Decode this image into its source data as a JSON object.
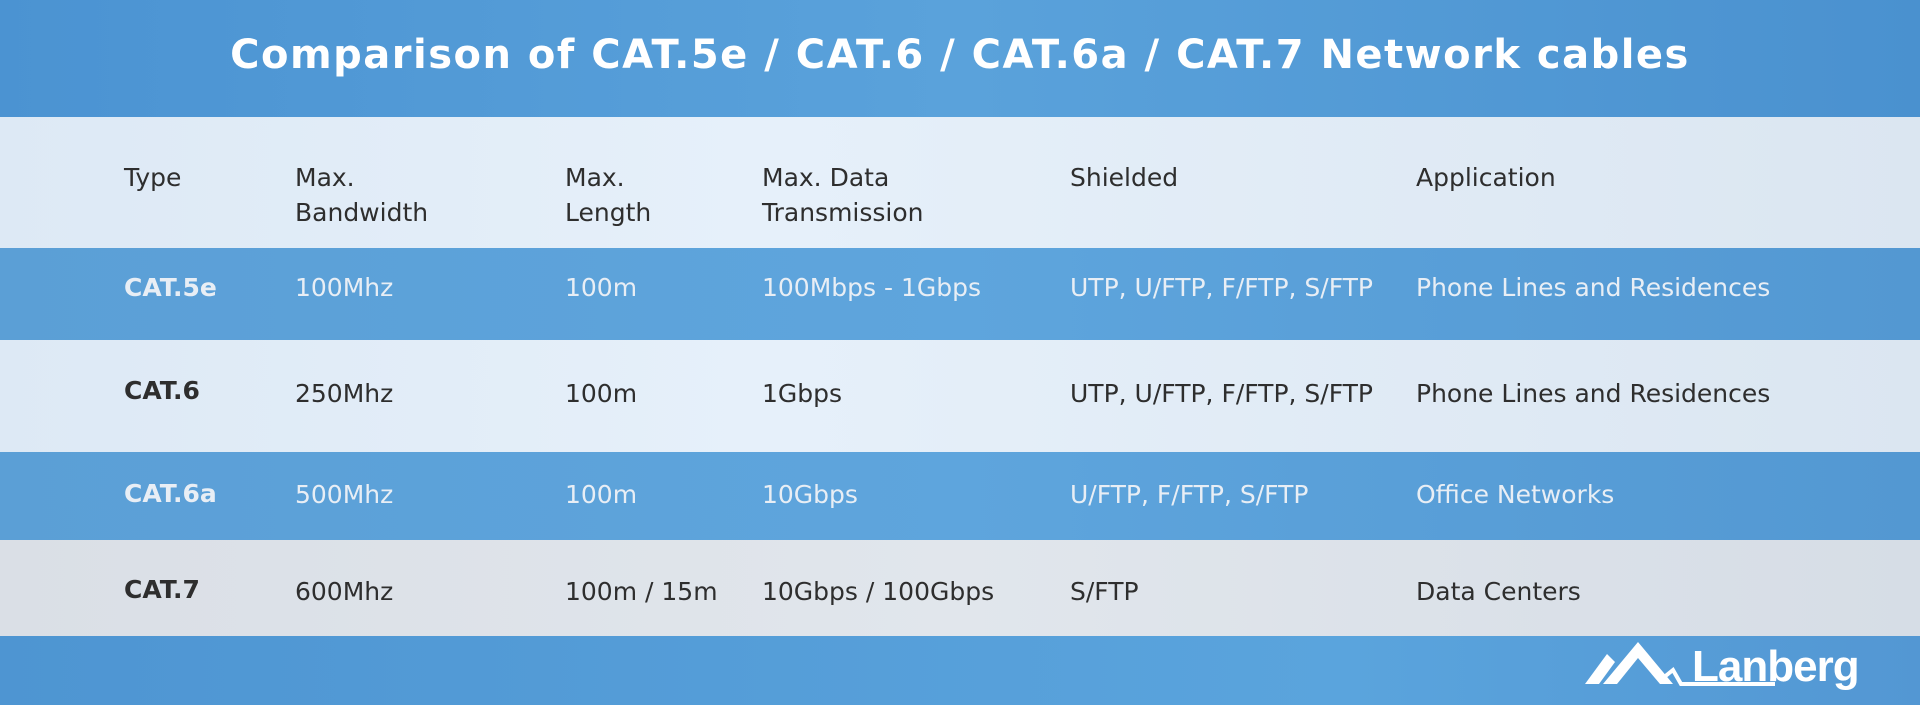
{
  "title": "Comparison of CAT.5e / CAT.6 / CAT.6a / CAT.7 Network cables",
  "table": {
    "headers": [
      {
        "line1": "Type",
        "line2": ""
      },
      {
        "line1": "Max.",
        "line2": "Bandwidth"
      },
      {
        "line1": "Max.",
        "line2": "Length"
      },
      {
        "line1": "Max. Data",
        "line2": "Transmission"
      },
      {
        "line1": "Shielded",
        "line2": ""
      },
      {
        "line1": "Application",
        "line2": ""
      }
    ],
    "rows": [
      [
        "CAT.5e",
        "100Mhz",
        "100m",
        "100Mbps - 1Gbps",
        "UTP, U/FTP, F/FTP, S/FTP",
        "Phone Lines and Residences"
      ],
      [
        "CAT.6",
        "250Mhz",
        "100m",
        "1Gbps",
        "UTP, U/FTP, F/FTP, S/FTP",
        "Phone Lines and Residences"
      ],
      [
        "CAT.6a",
        "500Mhz",
        "100m",
        "10Gbps",
        "U/FTP, F/FTP, S/FTP",
        "Office Networks"
      ],
      [
        "CAT.7",
        "600Mhz",
        "100m / 15m",
        "10Gbps / 100Gbps",
        "S/FTP",
        "Data Centers"
      ]
    ]
  },
  "logo": {
    "text": "Lanberg",
    "icon": "mountain-logo-icon"
  },
  "colors": {
    "accent_blue": "#5aa2db",
    "light_row": "#e2edf8",
    "text_dark": "#2e2e2e"
  }
}
